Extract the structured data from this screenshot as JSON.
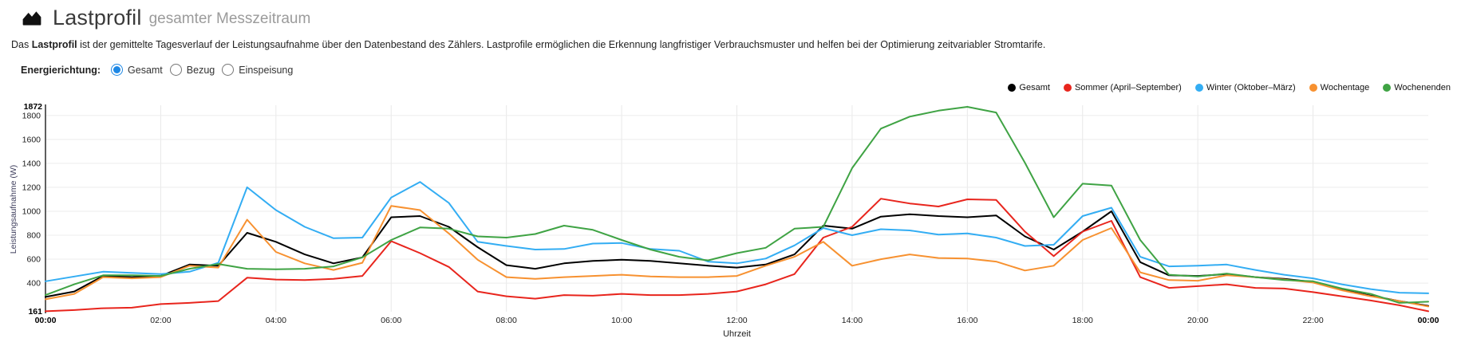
{
  "header": {
    "title": "Lastprofil",
    "subtitle": "gesamter Messzeitraum",
    "icon": "area-chart-icon"
  },
  "description": {
    "prefix": "Das ",
    "bold": "Lastprofil",
    "rest": " ist der gemittelte Tagesverlauf der Leistungsaufnahme über den Datenbestand des Zählers. Lastprofile ermöglichen die Erkennung langfristiger Verbrauchsmuster und helfen bei der Optimierung zeitvariabler Stromtarife."
  },
  "controls": {
    "group_label": "Energierichtung:",
    "options": [
      {
        "label": "Gesamt",
        "selected": true
      },
      {
        "label": "Bezug",
        "selected": false
      },
      {
        "label": "Einspeisung",
        "selected": false
      }
    ],
    "accent_color": "#1e88e5"
  },
  "chart_data": {
    "type": "line",
    "title": "",
    "xlabel": "Uhrzeit",
    "ylabel": "Leistungsaufnahme (W)",
    "ylim": [
      161,
      1872
    ],
    "y_min_label": "161",
    "y_max_label": "1872",
    "y_ticks": [
      400,
      600,
      800,
      1000,
      1200,
      1400,
      1600,
      1800
    ],
    "x_start_hour": 0,
    "x_end_hour": 24,
    "x_step_hours": 0.5,
    "x_tick_hours": [
      0,
      2,
      4,
      6,
      8,
      10,
      12,
      14,
      16,
      18,
      20,
      22,
      24
    ],
    "x_tick_labels": [
      "00:00",
      "02:00",
      "04:00",
      "06:00",
      "08:00",
      "10:00",
      "12:00",
      "14:00",
      "16:00",
      "18:00",
      "20:00",
      "22:00",
      "00:00"
    ],
    "grid": true,
    "legend_position": "top-right",
    "series": [
      {
        "name": "Gesamt",
        "color": "#000000",
        "values": [
          285,
          330,
          460,
          450,
          460,
          555,
          545,
          820,
          745,
          640,
          565,
          615,
          950,
          960,
          870,
          700,
          550,
          520,
          565,
          585,
          595,
          585,
          565,
          545,
          530,
          555,
          640,
          880,
          855,
          955,
          975,
          960,
          950,
          965,
          790,
          680,
          830,
          1000,
          575,
          465,
          460,
          475,
          450,
          435,
          410,
          345,
          295,
          250,
          210
        ]
      },
      {
        "name": "Sommer (April–September)",
        "color": "#e8251d",
        "values": [
          165,
          175,
          190,
          195,
          225,
          235,
          250,
          445,
          430,
          425,
          435,
          460,
          750,
          650,
          535,
          330,
          290,
          270,
          300,
          295,
          310,
          300,
          300,
          310,
          330,
          390,
          475,
          780,
          870,
          1105,
          1065,
          1040,
          1100,
          1095,
          830,
          625,
          830,
          920,
          450,
          360,
          375,
          390,
          360,
          355,
          325,
          290,
          255,
          215,
          165
        ]
      },
      {
        "name": "Winter (Oktober–März)",
        "color": "#33adf3",
        "values": [
          415,
          455,
          495,
          485,
          475,
          495,
          570,
          1200,
          1010,
          870,
          775,
          780,
          1115,
          1245,
          1070,
          745,
          710,
          680,
          685,
          730,
          735,
          685,
          670,
          580,
          565,
          605,
          715,
          860,
          800,
          850,
          840,
          805,
          815,
          780,
          710,
          720,
          960,
          1030,
          620,
          540,
          545,
          555,
          510,
          470,
          440,
          390,
          350,
          320,
          315
        ]
      },
      {
        "name": "Wochentage",
        "color": "#f79130",
        "values": [
          265,
          310,
          450,
          440,
          450,
          545,
          530,
          930,
          660,
          565,
          510,
          570,
          1045,
          1010,
          815,
          595,
          450,
          435,
          450,
          460,
          470,
          455,
          450,
          450,
          460,
          545,
          620,
          745,
          545,
          600,
          640,
          610,
          605,
          580,
          505,
          545,
          760,
          860,
          490,
          425,
          420,
          465,
          450,
          430,
          405,
          340,
          290,
          250,
          205
        ]
      },
      {
        "name": "Wochenenden",
        "color": "#3fa344",
        "values": [
          300,
          390,
          465,
          465,
          460,
          520,
          560,
          520,
          515,
          520,
          540,
          615,
          760,
          865,
          855,
          790,
          780,
          810,
          880,
          845,
          760,
          680,
          620,
          590,
          650,
          695,
          855,
          870,
          1360,
          1690,
          1790,
          1840,
          1872,
          1825,
          1405,
          950,
          1230,
          1215,
          760,
          470,
          455,
          480,
          450,
          425,
          415,
          355,
          310,
          235,
          245
        ]
      }
    ]
  }
}
